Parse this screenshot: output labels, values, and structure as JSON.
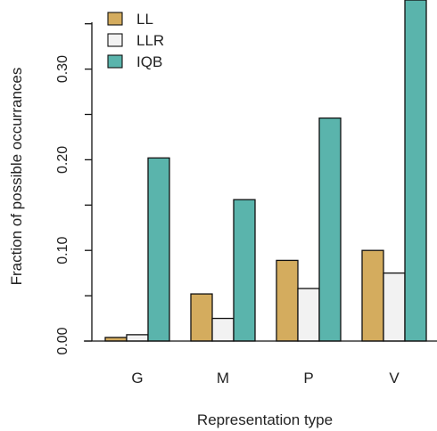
{
  "chart_data": {
    "type": "bar",
    "title": "",
    "xlabel": "Representation type",
    "ylabel": "Fraction of possible occurrances",
    "categories": [
      "G",
      "M",
      "P",
      "V"
    ],
    "series": [
      {
        "name": "LL",
        "color": "#d4ac5e",
        "values": [
          0.004,
          0.052,
          0.089,
          0.1
        ]
      },
      {
        "name": "LLR",
        "color": "#f2f2f2",
        "values": [
          0.007,
          0.025,
          0.058,
          0.075
        ]
      },
      {
        "name": "IQB",
        "color": "#5ab4ac",
        "values": [
          0.202,
          0.156,
          0.246,
          0.38
        ]
      }
    ],
    "ylim": [
      0,
      0.375
    ],
    "yticks": [
      0.0,
      0.1,
      0.2,
      0.3
    ],
    "ytick_labels": [
      "0.00",
      "0.10",
      "0.20",
      "0.30"
    ],
    "grid": false,
    "legend": "top-left"
  }
}
